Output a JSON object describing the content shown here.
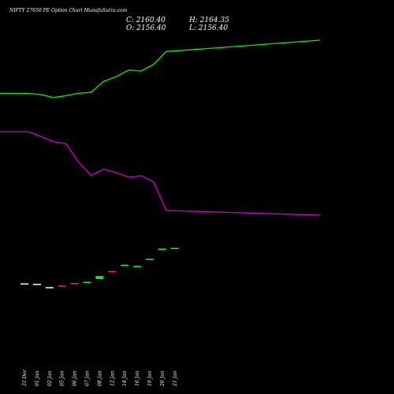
{
  "header": {
    "title": "NIFTY 27650  PE Option  Chart MunafaSutra.com",
    "close_label": "C: 2160.40",
    "high_label": "H: 2164.35",
    "open_label": "O: 2156.40",
    "low_label": "L: 2156.40"
  },
  "chart_data": {
    "type": "candlestick",
    "background": "#000000",
    "x_tick_labels": [
      "31 Dec",
      "01 Jan",
      "02 Jan",
      "05 Jan",
      "06 Jan",
      "07 Jan",
      "08 Jan",
      "12 Jan",
      "14 Jan",
      "16 Jan",
      "19 Jan",
      "20 Jan",
      "21 Jan"
    ],
    "colors": {
      "up": "#22ee22",
      "down": "#ee3333",
      "flat": "#ffffff",
      "upper_line": "#00ee00",
      "lower_line": "#cc00cc"
    },
    "candles": [
      {
        "date": "31 Dec",
        "open": 1340,
        "close": 1341,
        "high": 1341,
        "low": 1340,
        "color": "flat"
      },
      {
        "date": "01 Jan",
        "open": 1335,
        "close": 1336,
        "high": 1336,
        "low": 1335,
        "color": "flat"
      },
      {
        "date": "02 Jan",
        "open": 1300,
        "close": 1301,
        "high": 1301,
        "low": 1300,
        "color": "flat"
      },
      {
        "date": "05 Jan",
        "open": 1318,
        "close": 1317,
        "high": 1318,
        "low": 1317,
        "color": "down"
      },
      {
        "date": "06 Jan",
        "open": 1345,
        "close": 1340,
        "high": 1345,
        "low": 1340,
        "color": "down"
      },
      {
        "date": "07 Jan",
        "open": 1352,
        "close": 1357,
        "high": 1357,
        "low": 1352,
        "color": "up"
      },
      {
        "date": "08 Jan",
        "open": 1388,
        "close": 1418,
        "high": 1418,
        "low": 1388,
        "color": "up"
      },
      {
        "date": "12 Jan",
        "open": 1470,
        "close": 1465,
        "high": 1470,
        "low": 1465,
        "color": "down"
      },
      {
        "date": "14 Jan",
        "open": 1532,
        "close": 1537,
        "high": 1537,
        "low": 1532,
        "color": "up"
      },
      {
        "date": "16 Jan",
        "open": 1519,
        "close": 1524,
        "high": 1524,
        "low": 1519,
        "color": "up"
      },
      {
        "date": "19 Jan",
        "open": 1590,
        "close": 1600,
        "high": 1600,
        "low": 1590,
        "color": "up"
      },
      {
        "date": "20 Jan",
        "open": 1705,
        "close": 1707,
        "high": 1707,
        "low": 1705,
        "color": "up"
      },
      {
        "date": "21 Jan",
        "open": 2156.4,
        "close": 2160.4,
        "high": 2164.35,
        "low": 2156.4,
        "color": "up"
      }
    ],
    "upper_line": [
      3345,
      3343,
      3332,
      3300,
      3320,
      3345,
      3355,
      3470,
      3520,
      3590,
      3580,
      3650,
      3785,
      3905
    ],
    "lower_line": [
      2940,
      2940,
      2890,
      2835,
      2815,
      2620,
      2480,
      2545,
      2510,
      2460,
      2475,
      2410,
      2110,
      2060
    ]
  }
}
